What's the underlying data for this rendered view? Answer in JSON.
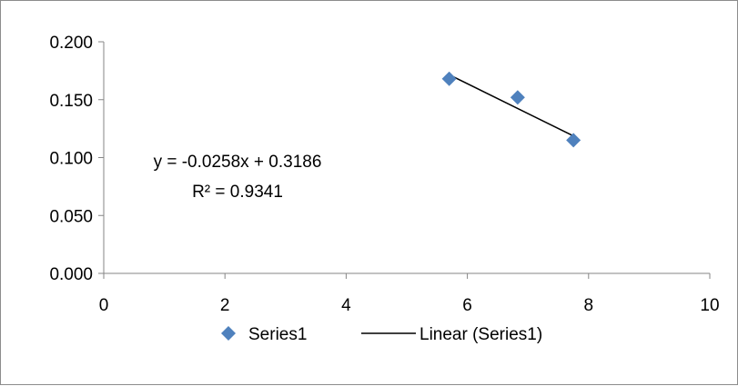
{
  "chart_data": {
    "type": "scatter",
    "series": [
      {
        "name": "Series1",
        "x": [
          5.7,
          6.83,
          7.75
        ],
        "y": [
          0.168,
          0.152,
          0.115
        ],
        "color": "#4f81bd",
        "marker": "diamond"
      }
    ],
    "trendline": {
      "name": "Linear (Series1)",
      "type": "linear",
      "slope": -0.0258,
      "intercept": 0.3186,
      "x_range": [
        5.7,
        7.75
      ],
      "color": "#000000",
      "equation_label": "y = -0.0258x + 0.3186",
      "r2_label": "R² = 0.9341"
    },
    "xlim": [
      0,
      10
    ],
    "ylim": [
      0,
      0.2
    ],
    "xticks": [
      0,
      2,
      4,
      6,
      8,
      10
    ],
    "xtick_labels": [
      "0",
      "2",
      "4",
      "6",
      "8",
      "10"
    ],
    "yticks": [
      0,
      0.05,
      0.1,
      0.15,
      0.2
    ],
    "ytick_labels": [
      "0.000",
      "0.050",
      "0.100",
      "0.150",
      "0.200"
    ],
    "grid": false,
    "legend": {
      "position": "bottom",
      "entries": [
        "Series1",
        "Linear (Series1)"
      ]
    }
  }
}
